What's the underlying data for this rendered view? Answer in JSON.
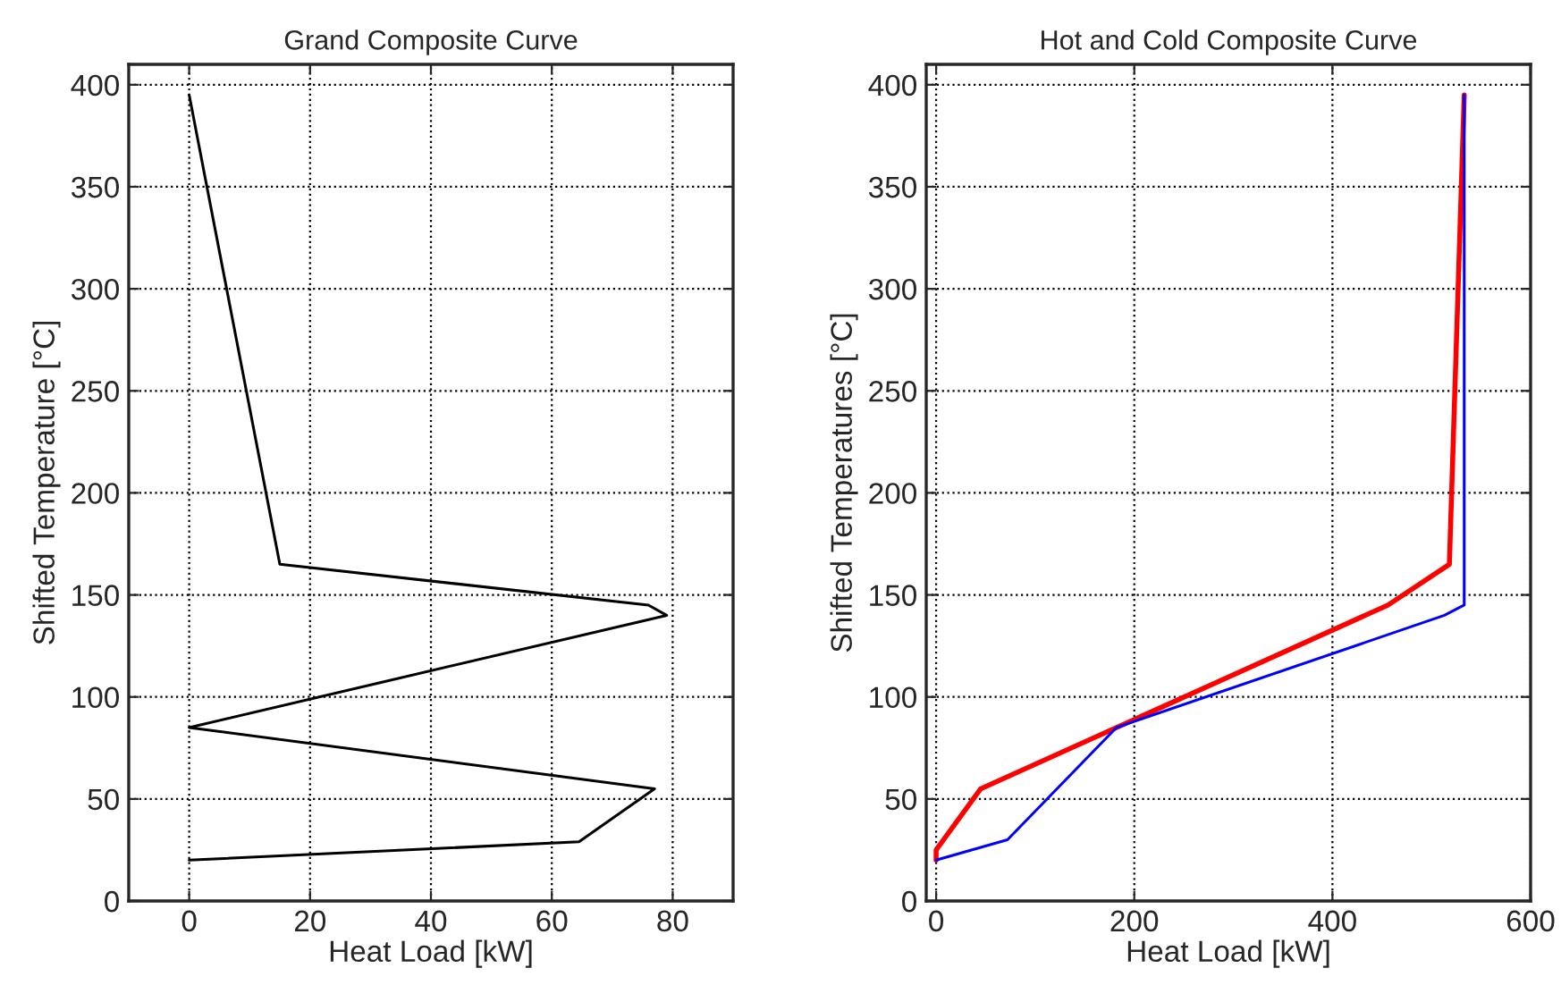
{
  "chart_data": [
    {
      "type": "line",
      "title": "Grand Composite Curve",
      "xlabel": "Heat Load [kW]",
      "ylabel": "Shifted Temperature [°C]",
      "xlim": [
        -10,
        90
      ],
      "xticks": [
        0,
        20,
        40,
        60,
        80
      ],
      "ylim": [
        0,
        410
      ],
      "yticks": [
        0,
        50,
        100,
        150,
        200,
        250,
        300,
        350,
        400
      ],
      "grid": true,
      "line_style": "solid",
      "series": [
        {
          "color": "#000000",
          "x": [
            0,
            15,
            76,
            79,
            0,
            77,
            64.5,
            0
          ],
          "values": [
            395,
            165,
            145,
            140,
            85,
            55,
            29,
            20
          ]
        }
      ]
    },
    {
      "type": "line",
      "title": "Hot and Cold Composite Curve",
      "xlabel": "Heat Load [kW]",
      "ylabel": "Shifted Temperatures [°C]",
      "xlim": [
        -10,
        600
      ],
      "xticks": [
        0,
        200,
        400,
        600
      ],
      "ylim": [
        0,
        410
      ],
      "yticks": [
        0,
        50,
        100,
        150,
        200,
        250,
        300,
        350,
        400
      ],
      "grid": true,
      "line_style": "solid",
      "series": [
        {
          "color": "#ff0000",
          "x": [
            0,
            0,
            45,
            182,
            456,
            518,
            533
          ],
          "values": [
            20,
            25,
            55,
            85,
            145,
            165,
            395
          ]
        },
        {
          "color": "#0000ff",
          "x": [
            0,
            72,
            182,
            513,
            533,
            533
          ],
          "values": [
            20,
            30,
            85,
            140,
            145,
            395
          ]
        }
      ]
    }
  ]
}
